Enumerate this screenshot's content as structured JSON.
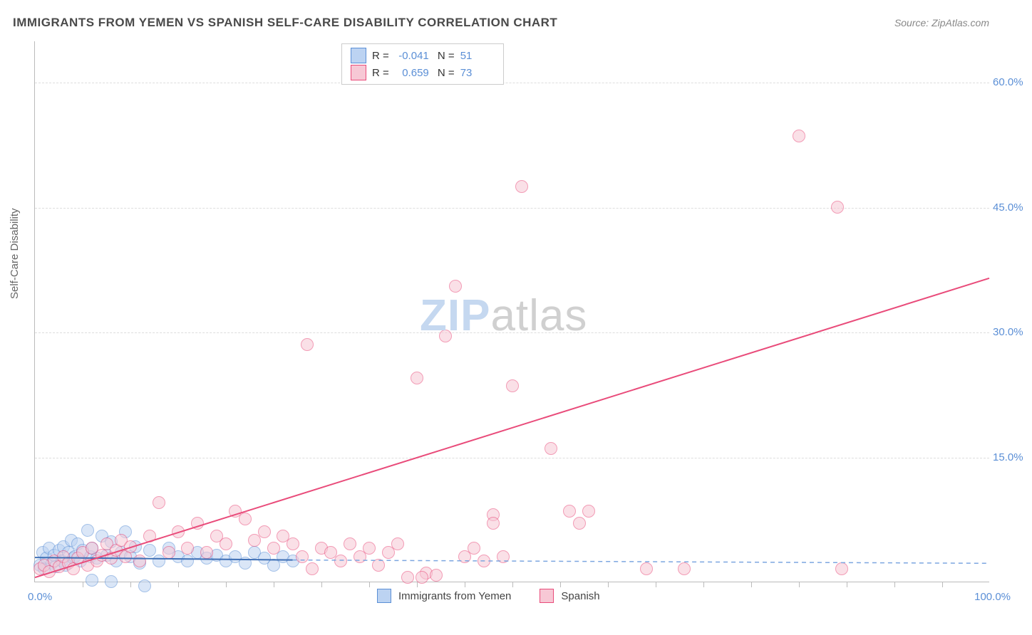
{
  "title": "IMMIGRANTS FROM YEMEN VS SPANISH SELF-CARE DISABILITY CORRELATION CHART",
  "source": "Source: ZipAtlas.com",
  "ylabel": "Self-Care Disability",
  "watermark_zip": "ZIP",
  "watermark_atlas": "atlas",
  "chart": {
    "type": "scatter",
    "xlim": [
      0,
      100
    ],
    "ylim": [
      0,
      65
    ],
    "y_ticks": [
      {
        "v": 15.0,
        "label": "15.0%"
      },
      {
        "v": 30.0,
        "label": "30.0%"
      },
      {
        "v": 45.0,
        "label": "45.0%"
      },
      {
        "v": 60.0,
        "label": "60.0%"
      }
    ],
    "x_tick_left": "0.0%",
    "x_tick_right": "100.0%",
    "x_tick_marks": [
      5,
      10,
      15,
      20,
      25,
      30,
      35,
      40,
      45,
      50,
      55,
      60,
      65,
      70,
      75,
      80,
      85,
      90,
      95
    ],
    "background_color": "#ffffff",
    "grid_color": "#dddddd",
    "axis_color": "#bbbbbb",
    "tick_label_color": "#5b8fd6",
    "point_radius": 9,
    "series": [
      {
        "name": "Immigrants from Yemen",
        "fill": "#bcd3f2",
        "stroke": "#5b8fd6",
        "fill_opacity": 0.55,
        "R": "-0.041",
        "N": "51",
        "trend": {
          "x1": 0,
          "y1": 2.8,
          "x2": 100,
          "y2": 2.4,
          "color": "#3e6fb5",
          "width": 2,
          "dash": "none",
          "extend_dash_x": 100,
          "extend_dash_color": "#7ca6e0"
        },
        "points": [
          [
            0.5,
            2.0
          ],
          [
            0.8,
            3.5
          ],
          [
            1.0,
            1.5
          ],
          [
            1.2,
            2.8
          ],
          [
            1.5,
            4.0
          ],
          [
            1.8,
            2.2
          ],
          [
            2.0,
            3.2
          ],
          [
            2.2,
            1.8
          ],
          [
            2.5,
            3.8
          ],
          [
            2.8,
            2.5
          ],
          [
            3.0,
            4.2
          ],
          [
            3.2,
            2.0
          ],
          [
            3.5,
            3.5
          ],
          [
            3.8,
            5.0
          ],
          [
            4.0,
            2.8
          ],
          [
            4.2,
            3.0
          ],
          [
            4.5,
            4.5
          ],
          [
            4.8,
            2.5
          ],
          [
            5.0,
            3.8
          ],
          [
            5.5,
            6.2
          ],
          [
            5.8,
            3.0
          ],
          [
            6.0,
            4.0
          ],
          [
            6.5,
            2.8
          ],
          [
            7.0,
            5.5
          ],
          [
            7.5,
            3.2
          ],
          [
            8.0,
            4.8
          ],
          [
            8.5,
            2.5
          ],
          [
            9.0,
            3.5
          ],
          [
            9.5,
            6.0
          ],
          [
            10.0,
            3.0
          ],
          [
            10.5,
            4.2
          ],
          [
            11.0,
            2.2
          ],
          [
            11.5,
            -0.5
          ],
          [
            12.0,
            3.8
          ],
          [
            13.0,
            2.5
          ],
          [
            14.0,
            4.0
          ],
          [
            15.0,
            3.0
          ],
          [
            16.0,
            2.5
          ],
          [
            17.0,
            3.5
          ],
          [
            18.0,
            2.8
          ],
          [
            19.0,
            3.2
          ],
          [
            20.0,
            2.5
          ],
          [
            21.0,
            3.0
          ],
          [
            22.0,
            2.2
          ],
          [
            23.0,
            3.5
          ],
          [
            24.0,
            2.8
          ],
          [
            25.0,
            2.0
          ],
          [
            26.0,
            3.0
          ],
          [
            27.0,
            2.5
          ],
          [
            8.0,
            0.0
          ],
          [
            6.0,
            0.2
          ]
        ]
      },
      {
        "name": "Spanish",
        "fill": "#f7c8d5",
        "stroke": "#e94b7a",
        "fill_opacity": 0.55,
        "R": "0.659",
        "N": "73",
        "trend": {
          "x1": 0,
          "y1": 0.5,
          "x2": 100,
          "y2": 36.5,
          "color": "#e94b7a",
          "width": 2,
          "dash": "none"
        },
        "points": [
          [
            0.5,
            1.5
          ],
          [
            1.0,
            2.0
          ],
          [
            1.5,
            1.2
          ],
          [
            2.0,
            2.5
          ],
          [
            2.5,
            1.8
          ],
          [
            3.0,
            3.0
          ],
          [
            3.5,
            2.2
          ],
          [
            4.0,
            1.5
          ],
          [
            4.5,
            2.8
          ],
          [
            5.0,
            3.5
          ],
          [
            5.5,
            2.0
          ],
          [
            6.0,
            4.0
          ],
          [
            6.5,
            2.5
          ],
          [
            7.0,
            3.2
          ],
          [
            7.5,
            4.5
          ],
          [
            8.0,
            2.8
          ],
          [
            8.5,
            3.8
          ],
          [
            9.0,
            5.0
          ],
          [
            9.5,
            3.0
          ],
          [
            10.0,
            4.2
          ],
          [
            11.0,
            2.5
          ],
          [
            12.0,
            5.5
          ],
          [
            13.0,
            9.5
          ],
          [
            14.0,
            3.5
          ],
          [
            15.0,
            6.0
          ],
          [
            16.0,
            4.0
          ],
          [
            17.0,
            7.0
          ],
          [
            18.0,
            3.5
          ],
          [
            19.0,
            5.5
          ],
          [
            20.0,
            4.5
          ],
          [
            21.0,
            8.5
          ],
          [
            22.0,
            7.5
          ],
          [
            23.0,
            5.0
          ],
          [
            24.0,
            6.0
          ],
          [
            25.0,
            4.0
          ],
          [
            26.0,
            5.5
          ],
          [
            27.0,
            4.5
          ],
          [
            28.0,
            3.0
          ],
          [
            29.0,
            1.5
          ],
          [
            30.0,
            4.0
          ],
          [
            31.0,
            3.5
          ],
          [
            32.0,
            2.5
          ],
          [
            33.0,
            4.5
          ],
          [
            34.0,
            3.0
          ],
          [
            35.0,
            4.0
          ],
          [
            36.0,
            2.0
          ],
          [
            37.0,
            3.5
          ],
          [
            38.0,
            4.5
          ],
          [
            39.0,
            0.5
          ],
          [
            40.0,
            24.5
          ],
          [
            28.5,
            28.5
          ],
          [
            43.0,
            29.5
          ],
          [
            44.0,
            35.5
          ],
          [
            47.0,
            2.5
          ],
          [
            48.0,
            8.0
          ],
          [
            49.0,
            3.0
          ],
          [
            50.0,
            23.5
          ],
          [
            51.0,
            47.5
          ],
          [
            48.0,
            7.0
          ],
          [
            54.0,
            16.0
          ],
          [
            56.0,
            8.5
          ],
          [
            57.0,
            7.0
          ],
          [
            58.0,
            8.5
          ],
          [
            64.0,
            1.5
          ],
          [
            68.0,
            1.5
          ],
          [
            80.0,
            53.5
          ],
          [
            84.0,
            45.0
          ],
          [
            84.5,
            1.5
          ],
          [
            45.0,
            3.0
          ],
          [
            46.0,
            4.0
          ],
          [
            41.0,
            1.0
          ],
          [
            42.0,
            0.8
          ],
          [
            40.5,
            0.5
          ]
        ]
      }
    ]
  },
  "legend_bottom": [
    {
      "swatch_fill": "#bcd3f2",
      "swatch_stroke": "#5b8fd6",
      "label": "Immigrants from Yemen"
    },
    {
      "swatch_fill": "#f7c8d5",
      "swatch_stroke": "#e94b7a",
      "label": "Spanish"
    }
  ]
}
